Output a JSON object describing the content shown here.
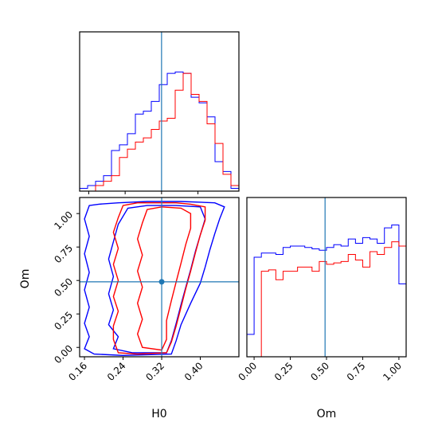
{
  "chart_data": {
    "type": "corner",
    "parameters": [
      "H0",
      "Om"
    ],
    "truths": {
      "H0": 0.32,
      "Om": 0.49
    },
    "truth_color": "#1f77b4",
    "series": [
      {
        "color": "#0000ff"
      },
      {
        "color": "#ff0000"
      }
    ],
    "panels": [
      {
        "id": "hist-H0",
        "kind": "histogram",
        "xlim": [
          0.14,
          0.49
        ],
        "ylim": [
          0,
          1
        ],
        "edges": [
          0.14,
          0.1575,
          0.175,
          0.1925,
          0.21,
          0.2275,
          0.245,
          0.2625,
          0.28,
          0.2975,
          0.315,
          0.3325,
          0.35,
          0.3675,
          0.385,
          0.4025,
          0.42,
          0.4375,
          0.455,
          0.4725,
          0.49
        ],
        "counts": [
          [
            0.02,
            0.04,
            0.07,
            0.11,
            0.29,
            0.33,
            0.41,
            0.55,
            0.57,
            0.64,
            0.76,
            0.84,
            0.85,
            0.84,
            0.67,
            0.63,
            0.53,
            0.21,
            0.14,
            0.02
          ],
          [
            0.0,
            0.0,
            0.04,
            0.07,
            0.11,
            0.24,
            0.3,
            0.35,
            0.38,
            0.44,
            0.5,
            0.52,
            0.72,
            0.84,
            0.69,
            0.64,
            0.48,
            0.34,
            0.12,
            0.04
          ]
        ]
      },
      {
        "id": "hist-Om",
        "kind": "histogram",
        "xlim": [
          -0.05,
          1.05
        ],
        "ylim": [
          0,
          1
        ],
        "edges": [
          -0.05,
          0.0,
          0.05,
          0.1,
          0.15,
          0.2,
          0.25,
          0.3,
          0.35,
          0.4,
          0.45,
          0.5,
          0.55,
          0.6,
          0.65,
          0.7,
          0.75,
          0.8,
          0.85,
          0.9,
          0.95,
          1.0,
          1.05
        ],
        "counts": [
          [
            0.16,
            0.71,
            0.74,
            0.74,
            0.73,
            0.78,
            0.79,
            0.79,
            0.78,
            0.77,
            0.76,
            0.78,
            0.8,
            0.79,
            0.84,
            0.81,
            0.85,
            0.84,
            0.81,
            0.92,
            0.94,
            0.52,
            0.09
          ],
          [
            0.0,
            0.0,
            0.61,
            0.62,
            0.55,
            0.61,
            0.61,
            0.64,
            0.64,
            0.61,
            0.68,
            0.66,
            0.67,
            0.68,
            0.73,
            0.69,
            0.64,
            0.75,
            0.73,
            0.78,
            0.82,
            0.79,
            0.0
          ]
        ]
      },
      {
        "id": "contour-H0-Om",
        "kind": "contour",
        "xlim": [
          0.15,
          0.48
        ],
        "ylim": [
          -0.07,
          1.12
        ],
        "xticks": [
          "0.16",
          "0.24",
          "0.32",
          "0.40"
        ],
        "xtick_values": [
          0.16,
          0.24,
          0.32,
          0.4
        ],
        "yticks": [
          "0.00",
          "0.25",
          "0.50",
          "0.75",
          "1.00"
        ],
        "ytick_values": [
          0.0,
          0.25,
          0.5,
          0.75,
          1.0
        ],
        "contours": [
          [
            [
              [
                0.17,
                1.06
              ],
              [
                0.19,
                1.07
              ],
              [
                0.23,
                1.08
              ],
              [
                0.29,
                1.09
              ],
              [
                0.36,
                1.09
              ],
              [
                0.43,
                1.08
              ],
              [
                0.45,
                1.05
              ],
              [
                0.44,
                0.96
              ],
              [
                0.43,
                0.85
              ],
              [
                0.42,
                0.73
              ],
              [
                0.41,
                0.6
              ],
              [
                0.4,
                0.48
              ],
              [
                0.38,
                0.33
              ],
              [
                0.36,
                0.17
              ],
              [
                0.35,
                0.05
              ],
              [
                0.34,
                -0.05
              ],
              [
                0.24,
                -0.06
              ],
              [
                0.18,
                -0.05
              ],
              [
                0.16,
                -0.01
              ],
              [
                0.17,
                0.08
              ],
              [
                0.16,
                0.18
              ],
              [
                0.17,
                0.3
              ],
              [
                0.16,
                0.43
              ],
              [
                0.17,
                0.56
              ],
              [
                0.16,
                0.7
              ],
              [
                0.17,
                0.83
              ],
              [
                0.16,
                0.96
              ],
              [
                0.17,
                1.06
              ]
            ],
            [
              [
                0.25,
                1.04
              ],
              [
                0.29,
                1.06
              ],
              [
                0.35,
                1.06
              ],
              [
                0.4,
                1.05
              ],
              [
                0.41,
                0.96
              ],
              [
                0.4,
                0.84
              ],
              [
                0.39,
                0.72
              ],
              [
                0.38,
                0.58
              ],
              [
                0.37,
                0.45
              ],
              [
                0.36,
                0.32
              ],
              [
                0.35,
                0.18
              ],
              [
                0.34,
                0.05
              ],
              [
                0.33,
                -0.04
              ],
              [
                0.26,
                -0.04
              ],
              [
                0.22,
                -0.01
              ],
              [
                0.23,
                0.08
              ],
              [
                0.21,
                0.17
              ],
              [
                0.22,
                0.28
              ],
              [
                0.21,
                0.4
              ],
              [
                0.22,
                0.53
              ],
              [
                0.21,
                0.66
              ],
              [
                0.22,
                0.79
              ],
              [
                0.23,
                0.92
              ],
              [
                0.25,
                1.04
              ]
            ]
          ],
          [
            [
              [
                0.24,
                1.06
              ],
              [
                0.27,
                1.08
              ],
              [
                0.31,
                1.08
              ],
              [
                0.35,
                1.08
              ],
              [
                0.38,
                1.07
              ],
              [
                0.41,
                1.05
              ],
              [
                0.41,
                0.95
              ],
              [
                0.4,
                0.84
              ],
              [
                0.39,
                0.71
              ],
              [
                0.38,
                0.57
              ],
              [
                0.37,
                0.44
              ],
              [
                0.36,
                0.3
              ],
              [
                0.35,
                0.16
              ],
              [
                0.34,
                0.04
              ],
              [
                0.33,
                -0.04
              ],
              [
                0.27,
                -0.05
              ],
              [
                0.23,
                -0.04
              ],
              [
                0.22,
                0.06
              ],
              [
                0.22,
                0.16
              ],
              [
                0.23,
                0.27
              ],
              [
                0.22,
                0.38
              ],
              [
                0.23,
                0.5
              ],
              [
                0.22,
                0.62
              ],
              [
                0.23,
                0.74
              ],
              [
                0.22,
                0.86
              ],
              [
                0.23,
                0.97
              ],
              [
                0.24,
                1.06
              ]
            ],
            [
              [
                0.29,
                1.03
              ],
              [
                0.32,
                1.05
              ],
              [
                0.36,
                1.04
              ],
              [
                0.38,
                1.0
              ],
              [
                0.38,
                0.89
              ],
              [
                0.37,
                0.77
              ],
              [
                0.36,
                0.63
              ],
              [
                0.35,
                0.49
              ],
              [
                0.34,
                0.35
              ],
              [
                0.33,
                0.2
              ],
              [
                0.33,
                0.06
              ],
              [
                0.32,
                -0.02
              ],
              [
                0.28,
                0.0
              ],
              [
                0.27,
                0.1
              ],
              [
                0.28,
                0.21
              ],
              [
                0.27,
                0.33
              ],
              [
                0.28,
                0.45
              ],
              [
                0.27,
                0.57
              ],
              [
                0.28,
                0.69
              ],
              [
                0.27,
                0.81
              ],
              [
                0.28,
                0.93
              ],
              [
                0.29,
                1.03
              ]
            ]
          ]
        ]
      }
    ]
  }
}
